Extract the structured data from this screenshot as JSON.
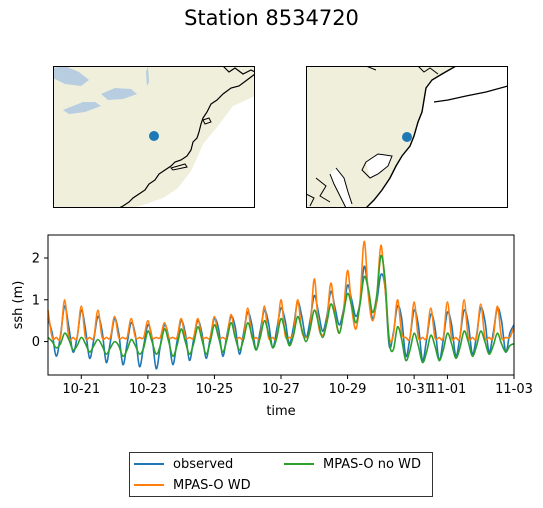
{
  "figure": {
    "title": "Station 8534720"
  },
  "maps": [
    {
      "name": "regional-map",
      "station_marker_color": "#1f77b4"
    },
    {
      "name": "zoomed-map",
      "station_marker_color": "#1f77b4"
    }
  ],
  "colors": {
    "land": "#efefdc",
    "water": "#b8cde0",
    "coast": "#000000"
  },
  "chart_data": {
    "type": "line",
    "title": "",
    "xlabel": "time",
    "ylabel": "ssh (m)",
    "x_range_days": [
      "2012-10-20",
      "2012-11-03"
    ],
    "xticks": [
      "10-21",
      "10-23",
      "10-25",
      "10-27",
      "10-29",
      "10-31",
      "11-01",
      "11-03"
    ],
    "yticks": [
      0,
      1,
      2
    ],
    "ylim": [
      -0.8,
      2.55
    ],
    "grid": false,
    "legend": {
      "position": "bottom-center",
      "columns": 2
    },
    "series": [
      {
        "name": "observed",
        "color": "#1f77b4",
        "x": [
          "2012-10-20T00:00",
          "2012-10-20T03:00",
          "2012-10-20T06:00",
          "2012-10-20T09:00",
          "2012-10-20T12:00",
          "2012-10-20T15:00",
          "2012-10-20T18:00",
          "2012-10-20T21:00",
          "2012-10-21T00:00",
          "2012-10-21T03:00",
          "2012-10-21T06:00",
          "2012-10-21T09:00",
          "2012-10-21T12:00",
          "2012-10-21T15:00",
          "2012-10-21T18:00",
          "2012-10-21T21:00",
          "2012-10-22T00:00",
          "2012-10-22T03:00",
          "2012-10-22T06:00",
          "2012-10-22T09:00",
          "2012-10-22T12:00",
          "2012-10-22T15:00",
          "2012-10-22T18:00",
          "2012-10-22T21:00",
          "2012-10-23T00:00",
          "2012-10-23T03:00",
          "2012-10-23T06:00",
          "2012-10-23T09:00",
          "2012-10-23T12:00",
          "2012-10-23T15:00",
          "2012-10-23T18:00",
          "2012-10-23T21:00",
          "2012-10-24T00:00",
          "2012-10-24T03:00",
          "2012-10-24T06:00",
          "2012-10-24T09:00",
          "2012-10-24T12:00",
          "2012-10-24T15:00",
          "2012-10-24T18:00",
          "2012-10-24T21:00",
          "2012-10-25T00:00",
          "2012-10-25T03:00",
          "2012-10-25T06:00",
          "2012-10-25T09:00",
          "2012-10-25T12:00",
          "2012-10-25T15:00",
          "2012-10-25T18:00",
          "2012-10-25T21:00",
          "2012-10-26T00:00",
          "2012-10-26T03:00",
          "2012-10-26T06:00",
          "2012-10-26T09:00",
          "2012-10-26T12:00",
          "2012-10-26T15:00",
          "2012-10-26T18:00",
          "2012-10-26T21:00",
          "2012-10-27T00:00",
          "2012-10-27T03:00",
          "2012-10-27T06:00",
          "2012-10-27T09:00",
          "2012-10-27T12:00",
          "2012-10-27T15:00",
          "2012-10-27T18:00",
          "2012-10-27T21:00",
          "2012-10-28T00:00",
          "2012-10-28T03:00",
          "2012-10-28T06:00",
          "2012-10-28T09:00",
          "2012-10-28T12:00",
          "2012-10-28T15:00",
          "2012-10-28T18:00",
          "2012-10-28T21:00",
          "2012-10-29T00:00",
          "2012-10-29T03:00",
          "2012-10-29T06:00",
          "2012-10-29T09:00",
          "2012-10-29T12:00",
          "2012-10-29T15:00",
          "2012-10-29T18:00",
          "2012-10-29T21:00",
          "2012-10-30T00:00",
          "2012-10-30T03:00",
          "2012-10-30T06:00",
          "2012-10-30T09:00",
          "2012-10-30T12:00",
          "2012-10-30T15:00",
          "2012-10-30T18:00",
          "2012-10-30T21:00",
          "2012-10-31T00:00",
          "2012-10-31T03:00",
          "2012-10-31T06:00",
          "2012-10-31T09:00",
          "2012-10-31T12:00",
          "2012-10-31T15:00",
          "2012-10-31T18:00",
          "2012-10-31T21:00",
          "2012-11-01T00:00",
          "2012-11-01T03:00",
          "2012-11-01T06:00",
          "2012-11-01T09:00",
          "2012-11-01T12:00",
          "2012-11-01T15:00",
          "2012-11-01T18:00",
          "2012-11-01T21:00",
          "2012-11-02T00:00",
          "2012-11-02T03:00",
          "2012-11-02T06:00",
          "2012-11-02T09:00",
          "2012-11-02T12:00",
          "2012-11-02T15:00",
          "2012-11-02T18:00",
          "2012-11-02T21:00",
          "2012-11-03T00:00"
        ],
        "values": [
          0.55,
          0.2,
          -0.35,
          0.15,
          0.85,
          0.35,
          -0.25,
          0.1,
          0.75,
          0.3,
          -0.4,
          0.05,
          0.6,
          0.25,
          -0.5,
          0.0,
          0.55,
          0.2,
          -0.55,
          -0.05,
          0.45,
          0.15,
          -0.6,
          -0.1,
          0.4,
          0.1,
          -0.65,
          -0.1,
          0.4,
          0.1,
          -0.55,
          0.0,
          0.5,
          0.2,
          -0.45,
          0.05,
          0.5,
          0.2,
          -0.4,
          0.1,
          0.55,
          0.3,
          -0.35,
          0.15,
          0.6,
          0.35,
          -0.3,
          0.2,
          0.7,
          0.4,
          -0.2,
          0.25,
          0.75,
          0.45,
          -0.15,
          0.3,
          0.8,
          0.5,
          -0.05,
          0.35,
          0.95,
          0.6,
          0.1,
          0.5,
          1.1,
          0.7,
          0.25,
          0.6,
          1.2,
          0.8,
          0.4,
          0.75,
          1.35,
          1.0,
          0.6,
          0.95,
          1.8,
          1.2,
          0.55,
          0.95,
          1.6,
          1.3,
          -0.1,
          0.2,
          0.85,
          0.55,
          -0.35,
          0.1,
          0.75,
          0.4,
          -0.45,
          0.05,
          0.65,
          0.35,
          -0.45,
          0.05,
          0.7,
          0.4,
          -0.35,
          0.1,
          0.75,
          0.45,
          -0.3,
          0.15,
          0.8,
          0.5,
          -0.25,
          0.2,
          0.8,
          0.5,
          -0.25,
          0.2,
          0.4
        ],
        "note": "approximate"
      },
      {
        "name": "MPAS-O WD",
        "color": "#ff7f0e",
        "x": "same_as_observed",
        "values": [
          0.75,
          0.1,
          0.1,
          0.1,
          1.0,
          0.1,
          0.1,
          0.1,
          0.85,
          0.1,
          0.1,
          0.1,
          0.75,
          0.1,
          0.1,
          0.1,
          0.6,
          0.1,
          0.1,
          0.1,
          0.55,
          0.1,
          0.1,
          0.1,
          0.5,
          0.1,
          0.1,
          0.1,
          0.45,
          0.1,
          0.1,
          0.1,
          0.55,
          0.1,
          0.1,
          0.1,
          0.55,
          0.1,
          0.1,
          0.1,
          0.6,
          0.1,
          0.1,
          0.1,
          0.65,
          0.1,
          0.1,
          0.1,
          0.8,
          0.1,
          0.1,
          0.1,
          0.85,
          0.1,
          0.1,
          0.1,
          1.0,
          0.15,
          0.1,
          0.2,
          1.0,
          0.25,
          0.1,
          0.3,
          1.5,
          0.4,
          0.15,
          0.5,
          1.4,
          0.6,
          0.2,
          0.7,
          1.7,
          0.8,
          0.3,
          1.0,
          2.4,
          1.1,
          0.5,
          1.05,
          2.3,
          1.3,
          0.1,
          0.15,
          1.0,
          0.2,
          0.1,
          0.1,
          0.95,
          0.1,
          0.1,
          0.1,
          0.8,
          0.1,
          0.1,
          0.1,
          0.95,
          0.1,
          0.1,
          0.1,
          1.0,
          0.1,
          0.1,
          0.1,
          0.9,
          0.1,
          0.1,
          0.1,
          0.85,
          0.1,
          0.1,
          0.1,
          0.35
        ],
        "note": "approximate"
      },
      {
        "name": "MPAS-O no WD",
        "color": "#2ca02c",
        "x": "same_as_observed",
        "values": [
          0.1,
          0.0,
          -0.15,
          -0.05,
          0.2,
          0.05,
          -0.2,
          -0.1,
          0.1,
          -0.05,
          -0.25,
          -0.1,
          0.05,
          -0.1,
          -0.3,
          -0.15,
          0.0,
          -0.1,
          -0.35,
          -0.2,
          0.05,
          -0.1,
          -0.3,
          -0.15,
          0.25,
          0.0,
          -0.3,
          -0.1,
          0.3,
          0.0,
          -0.35,
          -0.1,
          0.3,
          0.0,
          -0.3,
          -0.05,
          0.35,
          0.05,
          -0.3,
          0.0,
          0.4,
          0.1,
          -0.25,
          0.05,
          0.45,
          0.1,
          -0.2,
          0.05,
          0.45,
          0.15,
          -0.2,
          0.1,
          0.5,
          0.2,
          -0.15,
          0.1,
          0.55,
          0.25,
          -0.1,
          0.15,
          0.6,
          0.3,
          0.0,
          0.3,
          0.75,
          0.45,
          0.1,
          0.45,
          0.9,
          0.6,
          0.2,
          0.65,
          1.15,
          0.85,
          0.45,
          0.9,
          1.55,
          1.25,
          0.7,
          1.1,
          2.05,
          1.5,
          0.0,
          -0.2,
          0.35,
          0.05,
          -0.45,
          -0.2,
          0.2,
          -0.1,
          -0.5,
          -0.25,
          0.15,
          -0.1,
          -0.45,
          -0.2,
          0.2,
          -0.05,
          -0.4,
          -0.15,
          0.25,
          0.0,
          -0.35,
          -0.1,
          0.25,
          0.0,
          -0.3,
          -0.1,
          0.2,
          -0.05,
          -0.25,
          -0.1,
          -0.05
        ],
        "note": "approximate"
      }
    ]
  }
}
